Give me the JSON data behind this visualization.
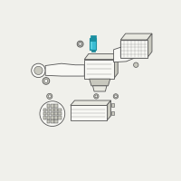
{
  "bg_color": "#f0f0eb",
  "outline_color": "#555555",
  "highlight_color": "#1a8fa0",
  "highlight_color2": "#3bbdd4",
  "light_fill": "#e8e8e0",
  "medium_fill": "#c8c8be",
  "white_fill": "#f8f8f4",
  "teal_dark": "#1a8090",
  "teal_mid": "#2aabb8",
  "teal_light": "#5cd0e0"
}
